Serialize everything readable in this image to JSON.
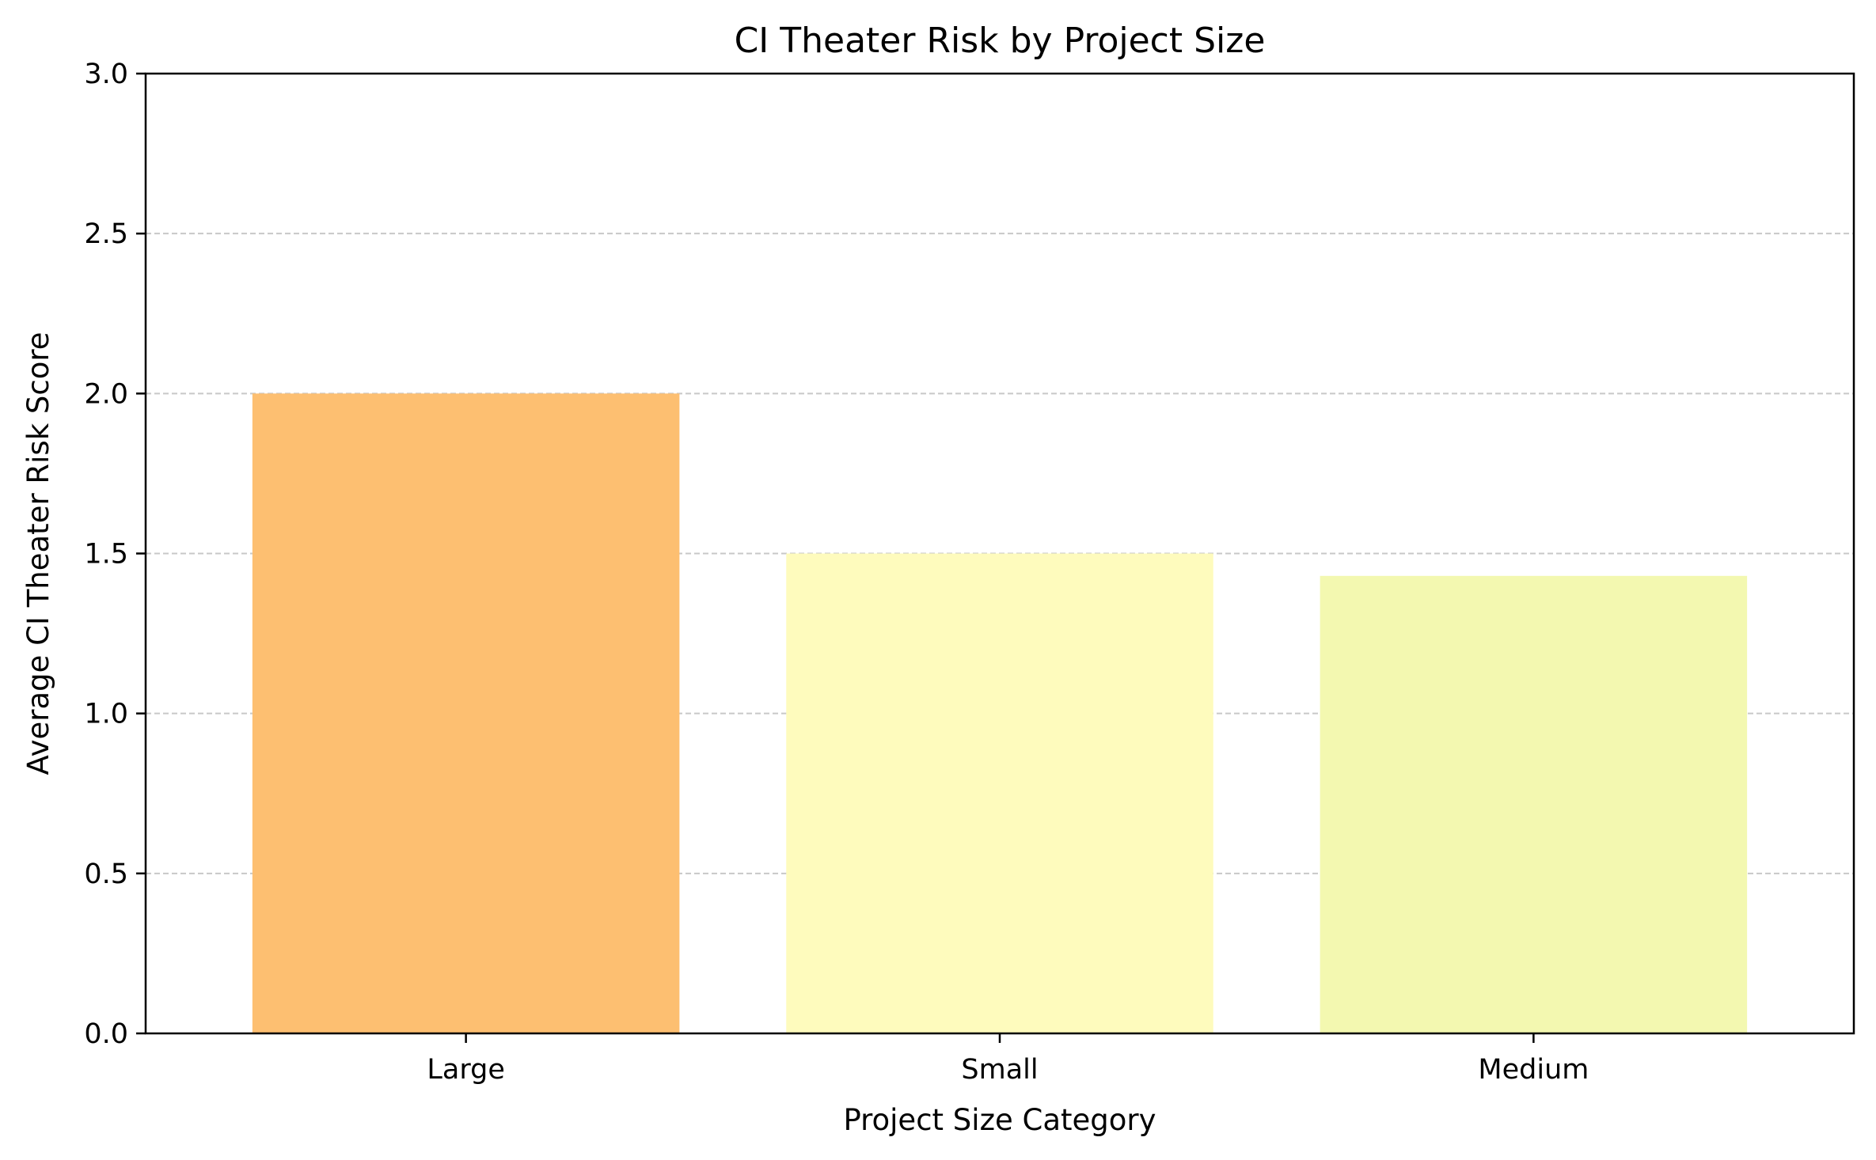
{
  "chart_data": {
    "type": "bar",
    "title": "CI Theater Risk by Project Size",
    "xlabel": "Project Size Category",
    "ylabel": "Average CI Theater Risk Score",
    "categories": [
      "Large",
      "Small",
      "Medium"
    ],
    "values": [
      2.0,
      1.5,
      1.43
    ],
    "colors": [
      "#fdbf71",
      "#fefbbd",
      "#f3f8b0"
    ],
    "ylim": [
      0,
      3.0
    ],
    "yticks": [
      0.0,
      0.5,
      1.0,
      1.5,
      2.0,
      2.5,
      3.0
    ],
    "ytick_labels": [
      "0.0",
      "0.5",
      "1.0",
      "1.5",
      "2.0",
      "2.5",
      "3.0"
    ],
    "grid": "y-dashed",
    "grid_color": "#c8c8c8"
  }
}
